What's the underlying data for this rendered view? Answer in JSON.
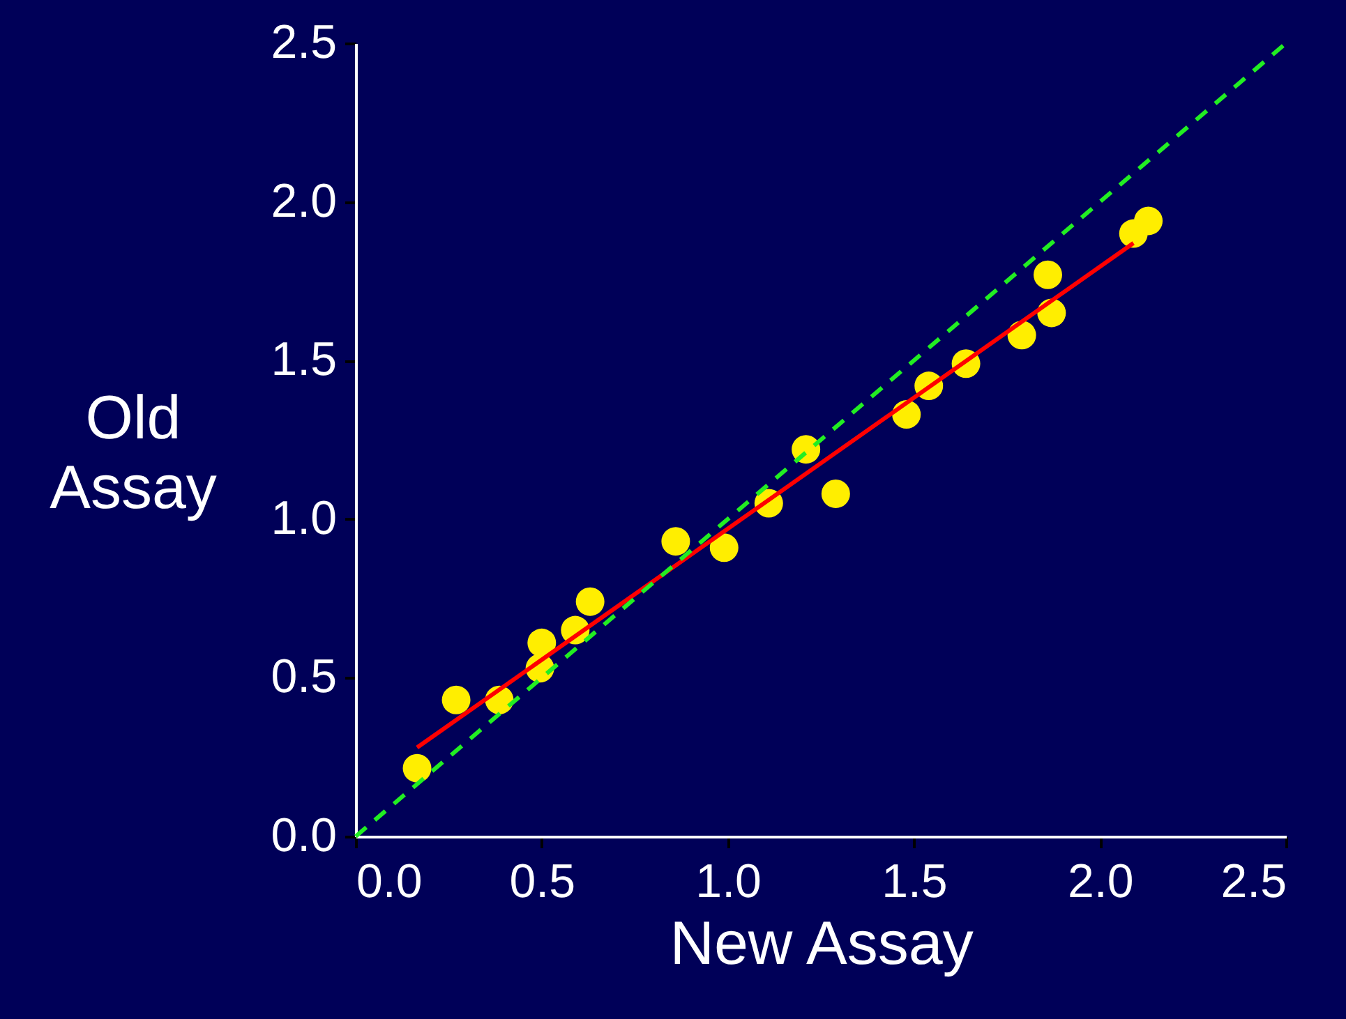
{
  "chart_data": {
    "type": "scatter",
    "xlabel": "New Assay",
    "ylabel": "Old\nAssay",
    "xlim": [
      0,
      2.5
    ],
    "ylim": [
      0,
      2.5
    ],
    "xticks": [
      {
        "value": 0,
        "label": "0.0"
      },
      {
        "value": 0.5,
        "label": "0.5"
      },
      {
        "value": 1,
        "label": "1.0"
      },
      {
        "value": 1.5,
        "label": "1.5"
      },
      {
        "value": 2,
        "label": "2.0"
      },
      {
        "value": 2.5,
        "label": "2.5"
      }
    ],
    "yticks": [
      {
        "value": 0,
        "label": "0.0"
      },
      {
        "value": 0.5,
        "label": "0.5"
      },
      {
        "value": 1,
        "label": "1.0"
      },
      {
        "value": 1.5,
        "label": "1.5"
      },
      {
        "value": 2,
        "label": "2.0"
      },
      {
        "value": 2.5,
        "label": "2.5"
      }
    ],
    "grid": false,
    "series": [
      {
        "type": "scatter",
        "marker": "circle",
        "color": "#ffee00",
        "x": [
          0.165,
          0.27,
          0.386,
          0.495,
          0.5,
          0.59,
          0.63,
          0.86,
          0.99,
          1.11,
          1.21,
          1.29,
          1.48,
          1.54,
          1.64,
          1.79,
          1.86,
          1.87,
          2.09,
          2.13
        ],
        "values": [
          0.215,
          0.43,
          0.43,
          0.53,
          0.61,
          0.65,
          0.74,
          0.93,
          0.91,
          1.05,
          1.22,
          1.08,
          1.33,
          1.42,
          1.49,
          1.58,
          1.77,
          1.65,
          1.9,
          1.94
        ]
      },
      {
        "type": "line",
        "marker": "none",
        "color": "#ff0000",
        "line_style": "solid",
        "x": [
          0.165,
          2.09
        ],
        "values": [
          0.28,
          1.87
        ]
      },
      {
        "type": "line",
        "marker": "none",
        "color": "#22ee22",
        "line_style": "dashed",
        "x": [
          0,
          2.5
        ],
        "values": [
          0,
          2.5
        ]
      }
    ]
  }
}
